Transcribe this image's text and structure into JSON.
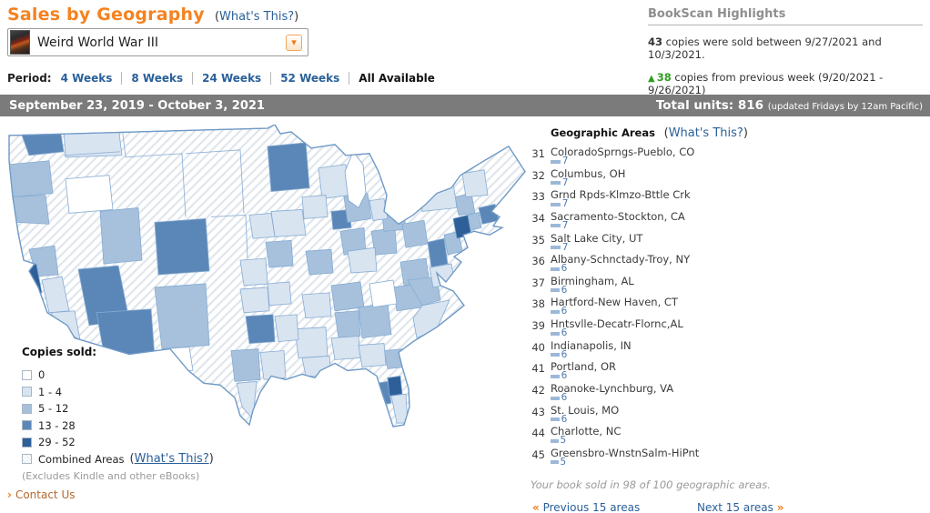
{
  "header": {
    "title": "Sales by Geography",
    "book_selector": {
      "value": "Weird World War III",
      "chevron": "▾"
    },
    "period": {
      "label": "Period:",
      "options": [
        "4 Weeks",
        "8 Weeks",
        "24 Weeks",
        "52 Weeks"
      ],
      "selected": "All Available"
    }
  },
  "whats_this": {
    "open": "(",
    "label": "What's This?",
    "close": ")"
  },
  "highlights": {
    "heading": "BookScan Highlights",
    "week_sales": {
      "count": "43",
      "text": " copies were sold between 9/27/2021 and 10/3/2021."
    },
    "week_change": {
      "arrow": "▲",
      "count": "38",
      "text": " copies from previous week (9/20/2021 - 9/26/2021)",
      "color": "#2f9e1e"
    }
  },
  "date_bar": {
    "date_range": "September 23, 2019 - October 3, 2021",
    "total_label": "Total units:",
    "total_value": "816",
    "update_note": "(updated Fridays by 12am Pacific)"
  },
  "map": {
    "legend": {
      "heading": "Copies sold:",
      "items": [
        {
          "label": "0",
          "color": "#ffffff"
        },
        {
          "label": "1 - 4",
          "color": "#d9e4f1"
        },
        {
          "label": "5 - 12",
          "color": "#a7c1dd"
        },
        {
          "label": "13 - 28",
          "color": "#5b87b8"
        },
        {
          "label": "29 - 52",
          "color": "#2e5f99"
        },
        {
          "label": "Combined Areas",
          "pattern": "hatched"
        }
      ],
      "note": "(Excludes Kindle and other eBooks)",
      "border_color": "#7ba3cc"
    }
  },
  "areas_panel": {
    "heading": "Geographic Areas",
    "rows": [
      {
        "rank": 31,
        "name": "ColoradoSprngs-Pueblo, CO",
        "value": 7
      },
      {
        "rank": 32,
        "name": "Columbus, OH",
        "value": 7
      },
      {
        "rank": 33,
        "name": "Grnd Rpds-Klmzo-Bttle Crk",
        "value": 7
      },
      {
        "rank": 34,
        "name": "Sacramento-Stockton, CA",
        "value": 7
      },
      {
        "rank": 35,
        "name": "Salt Lake City, UT",
        "value": 7
      },
      {
        "rank": 36,
        "name": "Albany-Schnctady-Troy, NY",
        "value": 6
      },
      {
        "rank": 37,
        "name": "Birmingham, AL",
        "value": 6
      },
      {
        "rank": 38,
        "name": "Hartford-New Haven, CT",
        "value": 6
      },
      {
        "rank": 39,
        "name": "Hntsvlle-Decatr-Flornc,AL",
        "value": 6
      },
      {
        "rank": 40,
        "name": "Indianapolis, IN",
        "value": 6
      },
      {
        "rank": 41,
        "name": "Portland, OR",
        "value": 6
      },
      {
        "rank": 42,
        "name": "Roanoke-Lynchburg, VA",
        "value": 6
      },
      {
        "rank": 43,
        "name": "St. Louis, MO",
        "value": 6
      },
      {
        "rank": 44,
        "name": "Charlotte, NC",
        "value": 5
      },
      {
        "rank": 45,
        "name": "Greensbro-WnstnSalm-HiPnt",
        "value": 5
      }
    ],
    "summary": "Your book sold in 98 of 100 geographic areas.",
    "pager": {
      "prev_arrow": "«",
      "prev_label": "Previous 15 areas",
      "next_label": "Next 15 areas",
      "next_arrow": "»"
    }
  },
  "footer": {
    "contact_arrow": "›",
    "contact_label": "Contact Us"
  }
}
